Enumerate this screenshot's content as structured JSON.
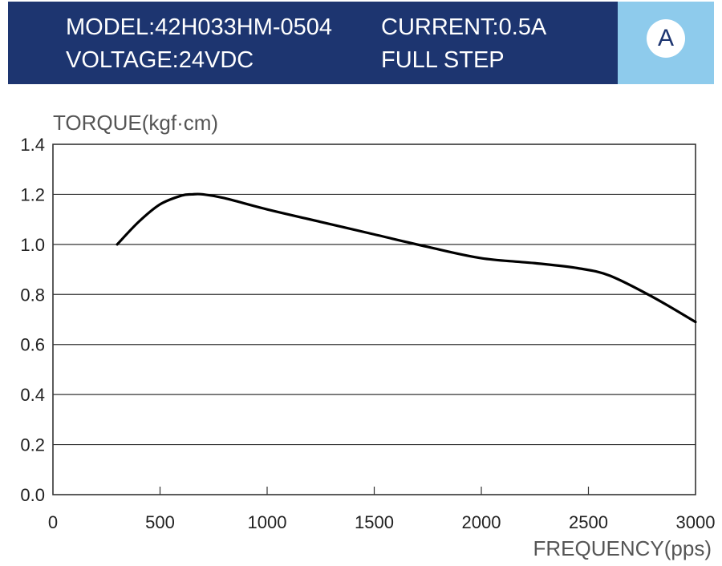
{
  "header": {
    "model": "MODEL:42H033HM-0504",
    "current": "CURRENT:0.5A",
    "voltage": "VOLTAGE:24VDC",
    "step": "FULL STEP",
    "badge": "A",
    "colors": {
      "banner": "#1d3570",
      "side": "#8ecbec"
    }
  },
  "chart_data": {
    "type": "line",
    "title": "",
    "xlabel": "FREQUENCY(pps)",
    "ylabel": "TORQUE(kgf·cm)",
    "xlim": [
      0,
      3000
    ],
    "ylim": [
      0,
      1.4
    ],
    "x_ticks": [
      "0",
      "500",
      "1000",
      "1500",
      "2000",
      "2500",
      "3000"
    ],
    "y_ticks": [
      "0.0",
      "0.2",
      "0.4",
      "0.6",
      "0.8",
      "1.0",
      "1.2",
      "1.4"
    ],
    "grid": "horizontal",
    "series": [
      {
        "x": [
          300,
          400,
          500,
          600,
          650,
          700,
          800,
          1000,
          1250,
          1500,
          1750,
          2000,
          2250,
          2450,
          2600,
          2800,
          3000
        ],
        "y": [
          1.0,
          1.09,
          1.16,
          1.195,
          1.2,
          1.2,
          1.185,
          1.14,
          1.09,
          1.04,
          0.99,
          0.945,
          0.925,
          0.905,
          0.875,
          0.79,
          0.69
        ]
      }
    ]
  }
}
